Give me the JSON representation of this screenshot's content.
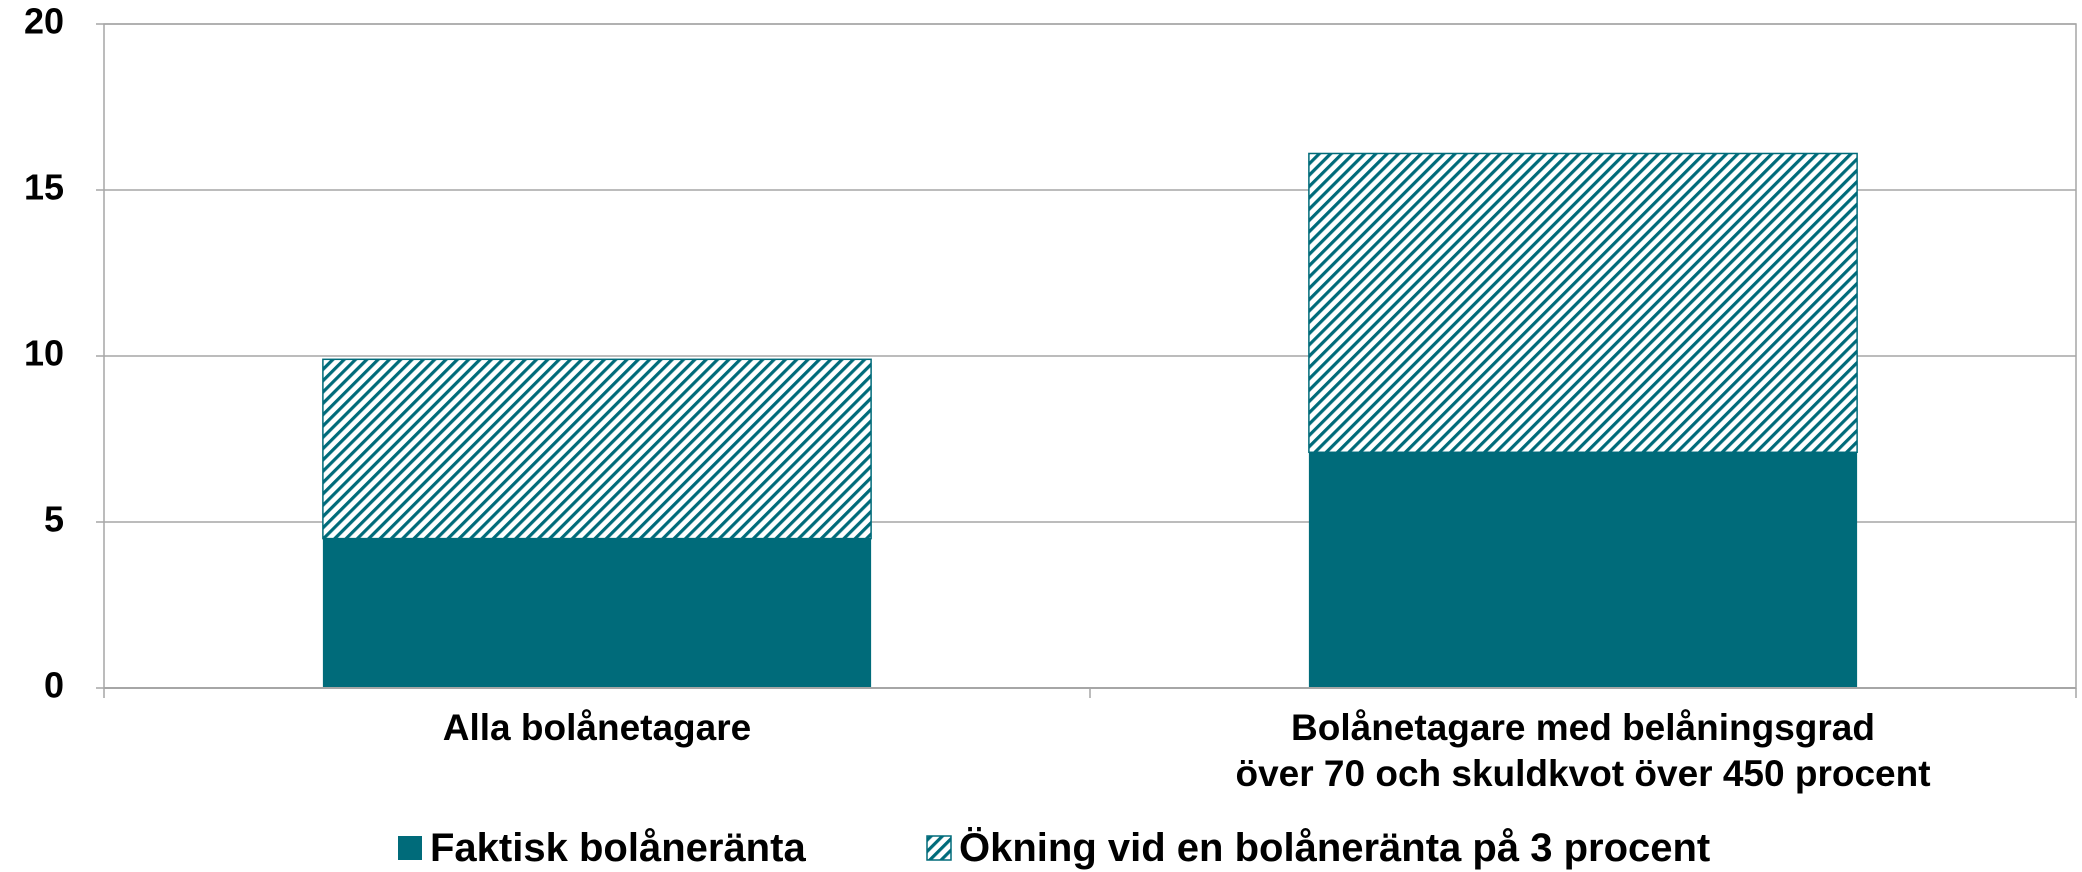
{
  "chart_data": {
    "type": "stacked_bar",
    "categories": [
      "Alla bolånetagare",
      "Bolånetagare med belåningsgrad\növer 70 och skuldkvot över 450 procent"
    ],
    "series": [
      {
        "name": "Faktisk bolåneränta",
        "color": "#006b7a",
        "fill": "solid",
        "values": [
          4.5,
          7.1
        ]
      },
      {
        "name": "Ökning vid en bolåneränta på 3 procent",
        "color": "#006b7a",
        "fill": "hatch",
        "values": [
          5.4,
          9.0
        ]
      }
    ],
    "ylim": [
      0,
      20
    ],
    "yticks": [
      0,
      5,
      10,
      15,
      20
    ],
    "grid": true,
    "legend": "bottom"
  }
}
